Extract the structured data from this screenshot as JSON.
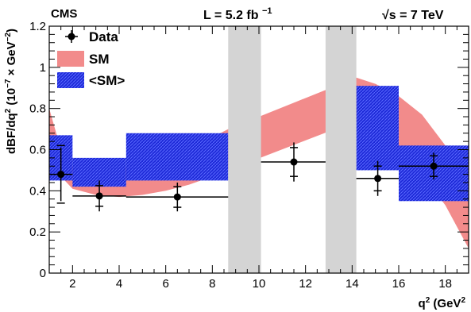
{
  "chart_data": {
    "type": "scatter",
    "header": {
      "experiment": "CMS",
      "luminosity": "L = 5.2 fb",
      "luminosity_exp": "−1",
      "energy_prefix": "√",
      "energy": "s = 7 TeV"
    },
    "xlabel": {
      "main": "q",
      "sup": "2",
      "unit_open": " (GeV",
      "unit_sup": "2",
      "unit_close": ")"
    },
    "ylabel": {
      "main": "dBF/dq",
      "sup1": "2",
      "unit": " (10",
      "sup2": "−7",
      "times": " × GeV",
      "sup3": "−2",
      "close": ")"
    },
    "xlim": [
      1,
      19
    ],
    "ylim": [
      0,
      1.2
    ],
    "x_ticks": [
      2,
      4,
      6,
      8,
      10,
      12,
      14,
      16,
      18
    ],
    "y_ticks": [
      0,
      0.2,
      0.4,
      0.6,
      0.8,
      1,
      1.2
    ],
    "legend": {
      "position": "top-left",
      "entries": [
        {
          "label": "Data",
          "kind": "marker"
        },
        {
          "label": "SM",
          "kind": "band",
          "color": "#f28b8b"
        },
        {
          "label": "<SM>",
          "kind": "box",
          "color": "#2a2ae6"
        }
      ]
    },
    "vetoed_regions": [
      [
        8.68,
        10.09
      ],
      [
        12.86,
        14.18
      ]
    ],
    "sm_band": {
      "x": [
        1,
        1.5,
        2,
        3,
        4,
        5,
        6,
        7,
        8,
        8.68,
        14.18,
        15,
        16,
        17,
        18,
        19
      ],
      "upper": [
        0.8,
        0.6,
        0.52,
        0.5,
        0.51,
        0.53,
        0.56,
        0.6,
        0.66,
        0.7,
        0.95,
        0.92,
        0.86,
        0.77,
        0.62,
        0.4
      ],
      "lower": [
        0.58,
        0.47,
        0.41,
        0.38,
        0.37,
        0.38,
        0.4,
        0.43,
        0.47,
        0.5,
        0.74,
        0.68,
        0.6,
        0.48,
        0.33,
        0.12
      ]
    },
    "sm_average_bins": [
      {
        "x": [
          1,
          2
        ],
        "low": 0.45,
        "high": 0.67
      },
      {
        "x": [
          2,
          4.3
        ],
        "low": 0.42,
        "high": 0.56
      },
      {
        "x": [
          4.3,
          8.68
        ],
        "low": 0.45,
        "high": 0.68
      },
      {
        "x": [
          14.18,
          16
        ],
        "low": 0.5,
        "high": 0.91
      },
      {
        "x": [
          16,
          19
        ],
        "low": 0.35,
        "high": 0.62
      }
    ],
    "data_points": [
      {
        "x": 1.5,
        "xlo": 1,
        "xhi": 2,
        "y": 0.48,
        "err_stat": 0.14,
        "err_tot": 0.13
      },
      {
        "x": 3.15,
        "xlo": 2,
        "xhi": 4.3,
        "y": 0.375,
        "err_stat": 0.05,
        "err_tot": 0.075
      },
      {
        "x": 6.5,
        "xlo": 4.3,
        "xhi": 8.68,
        "y": 0.37,
        "err_stat": 0.05,
        "err_tot": 0.07
      },
      {
        "x": 11.5,
        "xlo": 10.09,
        "xhi": 12.86,
        "y": 0.54,
        "err_stat": 0.07,
        "err_tot": 0.095
      },
      {
        "x": 15.1,
        "xlo": 14.18,
        "xhi": 16,
        "y": 0.46,
        "err_stat": 0.06,
        "err_tot": 0.085
      },
      {
        "x": 17.5,
        "xlo": 16,
        "xhi": 19,
        "y": 0.52,
        "err_stat": 0.05,
        "err_tot": 0.065
      }
    ]
  }
}
